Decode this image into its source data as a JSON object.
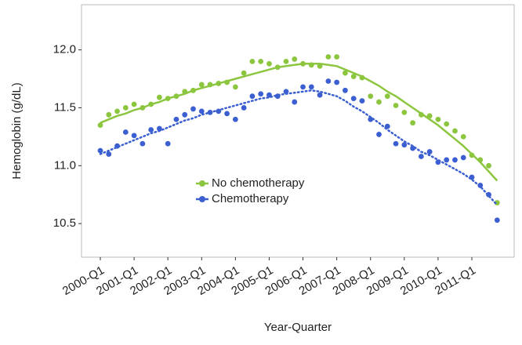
{
  "chart_data": {
    "type": "scatter",
    "x_label": "Year-Quarter",
    "y_label": "Hemoglobin (g/dL)",
    "categories": [
      "2000-Q1",
      null,
      null,
      null,
      "2001-Q1",
      null,
      null,
      null,
      "2002-Q1",
      null,
      null,
      null,
      "2003-Q1",
      null,
      null,
      null,
      "2004-Q1",
      null,
      null,
      null,
      "2005-Q1",
      null,
      null,
      null,
      "2006-Q1",
      null,
      null,
      null,
      "2007-Q1",
      null,
      null,
      null,
      "2008-Q1",
      null,
      null,
      null,
      "2009-Q1",
      null,
      null,
      null,
      "2010-Q1",
      null,
      null,
      null,
      "2011-Q1",
      null,
      null,
      null
    ],
    "series": [
      {
        "name": "No chemotherapy",
        "color": "#8cc63f",
        "line_style": "solid",
        "values": [
          11.35,
          11.44,
          11.47,
          11.5,
          11.53,
          11.5,
          11.53,
          11.59,
          11.58,
          11.6,
          11.64,
          11.65,
          11.7,
          11.7,
          11.71,
          11.72,
          11.68,
          11.8,
          11.9,
          11.9,
          11.88,
          11.85,
          11.9,
          11.92,
          11.88,
          11.87,
          11.86,
          11.94,
          11.94,
          11.8,
          11.77,
          11.76,
          11.6,
          11.55,
          11.6,
          11.52,
          11.46,
          11.37,
          11.44,
          11.43,
          11.4,
          11.36,
          11.3,
          11.25,
          11.09,
          11.05,
          11.0,
          10.68
        ],
        "fit": [
          11.37,
          11.4,
          11.43,
          11.45,
          11.48,
          11.5,
          11.53,
          11.55,
          11.58,
          11.6,
          11.62,
          11.65,
          11.67,
          11.69,
          11.71,
          11.73,
          11.75,
          11.77,
          11.79,
          11.81,
          11.83,
          11.85,
          11.86,
          11.87,
          11.88,
          11.88,
          11.88,
          11.87,
          11.86,
          11.83,
          11.8,
          11.77,
          11.73,
          11.69,
          11.64,
          11.6,
          11.55,
          11.5,
          11.45,
          11.4,
          11.35,
          11.29,
          11.23,
          11.17,
          11.1,
          11.03,
          10.95,
          10.87
        ]
      },
      {
        "name": "Chemotherapy",
        "color": "#3b5fd1",
        "line_style": "dotted",
        "values": [
          11.13,
          11.1,
          11.17,
          11.29,
          11.26,
          11.19,
          11.31,
          11.32,
          11.19,
          11.4,
          11.44,
          11.49,
          11.47,
          11.46,
          11.47,
          11.45,
          11.4,
          11.5,
          11.6,
          11.62,
          11.61,
          11.6,
          11.64,
          11.55,
          11.68,
          11.68,
          11.61,
          11.73,
          11.72,
          11.65,
          11.58,
          11.56,
          11.4,
          11.27,
          11.34,
          11.19,
          11.18,
          11.15,
          11.08,
          11.12,
          11.03,
          11.05,
          11.05,
          11.07,
          10.9,
          10.83,
          10.75,
          10.53
        ],
        "fit": [
          11.1,
          11.13,
          11.16,
          11.19,
          11.22,
          11.25,
          11.28,
          11.3,
          11.33,
          11.36,
          11.39,
          11.41,
          11.44,
          11.46,
          11.48,
          11.5,
          11.52,
          11.54,
          11.56,
          11.58,
          11.59,
          11.61,
          11.62,
          11.63,
          11.64,
          11.65,
          11.64,
          11.62,
          11.6,
          11.56,
          11.51,
          11.47,
          11.42,
          11.37,
          11.31,
          11.26,
          11.21,
          11.17,
          11.12,
          11.09,
          11.05,
          11.01,
          10.97,
          10.93,
          10.88,
          10.82,
          10.74,
          10.66
        ]
      }
    ],
    "ylim": [
      10.21,
      12.39
    ],
    "yticks": [
      10.5,
      {
        "value": 11,
        "label": "11.0"
      },
      11.5,
      {
        "value": 12,
        "label": "12.0"
      }
    ],
    "grid": false,
    "legend": "inside"
  }
}
